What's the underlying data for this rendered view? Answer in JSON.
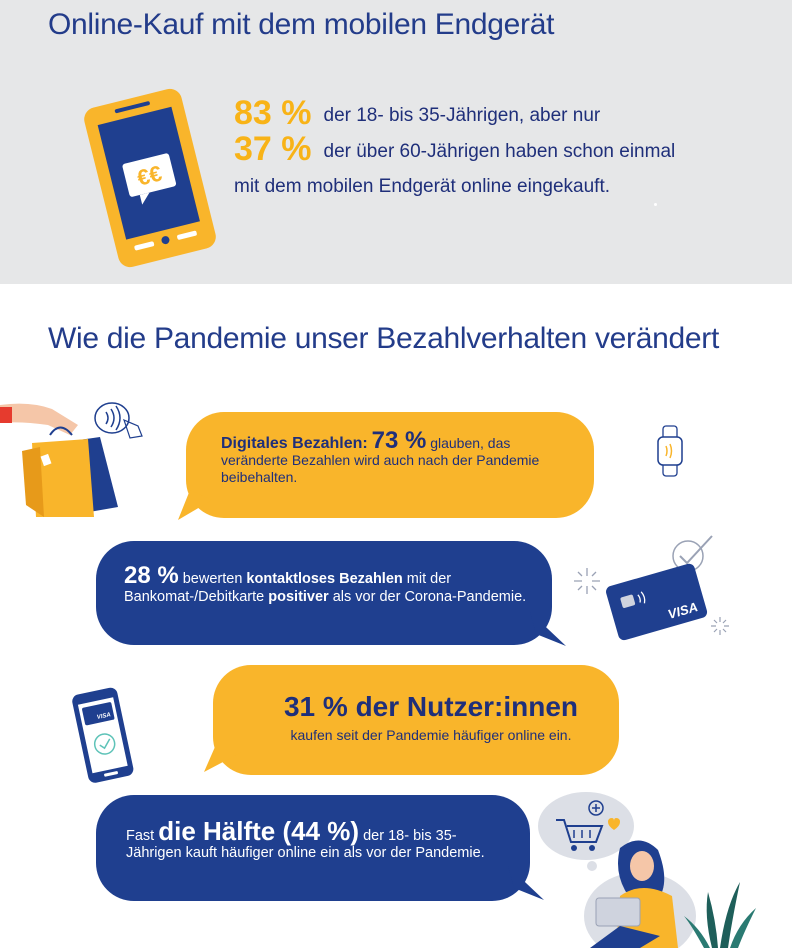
{
  "section1": {
    "title": "Online-Kauf mit dem mobilen Endgerät",
    "stat1_value": "83 %",
    "stat1_text": "der 18- bis 35-Jährigen, aber nur",
    "stat2_value": "37 %",
    "stat2_text": "der über 60-Jährigen haben schon einmal",
    "stat3_text": "mit dem mobilen Endgerät online eingekauft.",
    "phone_symbol": "€€"
  },
  "section2": {
    "title": "Wie die Pandemie unser Bezahlverhalten verändert",
    "bubble1": {
      "lead": "Digitales Bezahlen:",
      "value": "73 %",
      "text": "glauben, das veränderte Bezahlen wird auch nach der Pandemie beibehalten."
    },
    "bubble2": {
      "value": "28 %",
      "t1": "bewerten",
      "bold1": "kontaktloses Bezahlen",
      "t2": "mit der Bankomat-/Debitkarte",
      "bold2": "positiver",
      "t3": "als vor der Corona-Pandemie."
    },
    "bubble3": {
      "headline": "31 % der Nutzer:innen",
      "text": "kaufen seit der Pandemie häufiger online ein."
    },
    "bubble4": {
      "t1": "Fast",
      "big": "die Hälfte (44 %)",
      "t2": "der 18- bis 35-Jährigen kauft häufiger online ein als vor der Pandemie."
    },
    "card_brand": "VISA",
    "phone_brand": "VISA"
  },
  "colors": {
    "navy": "#1f3f8f",
    "yellow": "#f9b52b",
    "gray_bg": "#e6e7e8"
  },
  "icons": [
    "phone-euro-icon",
    "shopping-bags-icon",
    "nfc-hand-icon",
    "smartwatch-icon",
    "credit-card-icon",
    "checkmark-icon",
    "mobile-pay-icon",
    "shopping-cart-icon",
    "heart-icon",
    "woman-laptop-icon",
    "plant-icon"
  ]
}
